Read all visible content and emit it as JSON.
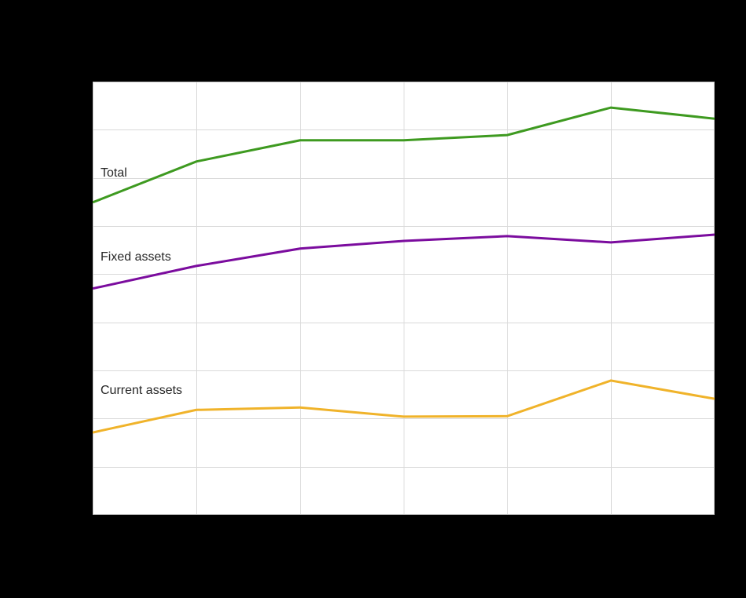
{
  "colors": {
    "background": "#000000",
    "plot_background": "#ffffff",
    "gridline": "#d9d9d9",
    "plot_border": "#c9c9c9",
    "label_text": "#262626"
  },
  "chart_data": {
    "type": "line",
    "x_index": [
      0,
      1,
      2,
      3,
      4,
      5,
      6
    ],
    "xlim": [
      0,
      6
    ],
    "ylim": [
      0,
      9
    ],
    "grid": {
      "rows": 9,
      "cols": 6,
      "visible": true
    },
    "axis_tick_labels_visible": false,
    "legend_position": "labels-on-lines",
    "series": [
      {
        "label": "Total",
        "color": "#3e9a20",
        "values": [
          6.49,
          7.34,
          7.78,
          7.78,
          7.89,
          8.46,
          8.23
        ]
      },
      {
        "label": "Fixed assets",
        "color": "#7b0c9e",
        "values": [
          4.7,
          5.17,
          5.53,
          5.69,
          5.79,
          5.66,
          5.82
        ]
      },
      {
        "label": "Current assets",
        "color": "#f0b32a",
        "values": [
          1.71,
          2.18,
          2.23,
          2.04,
          2.05,
          2.79,
          2.41
        ]
      }
    ]
  }
}
